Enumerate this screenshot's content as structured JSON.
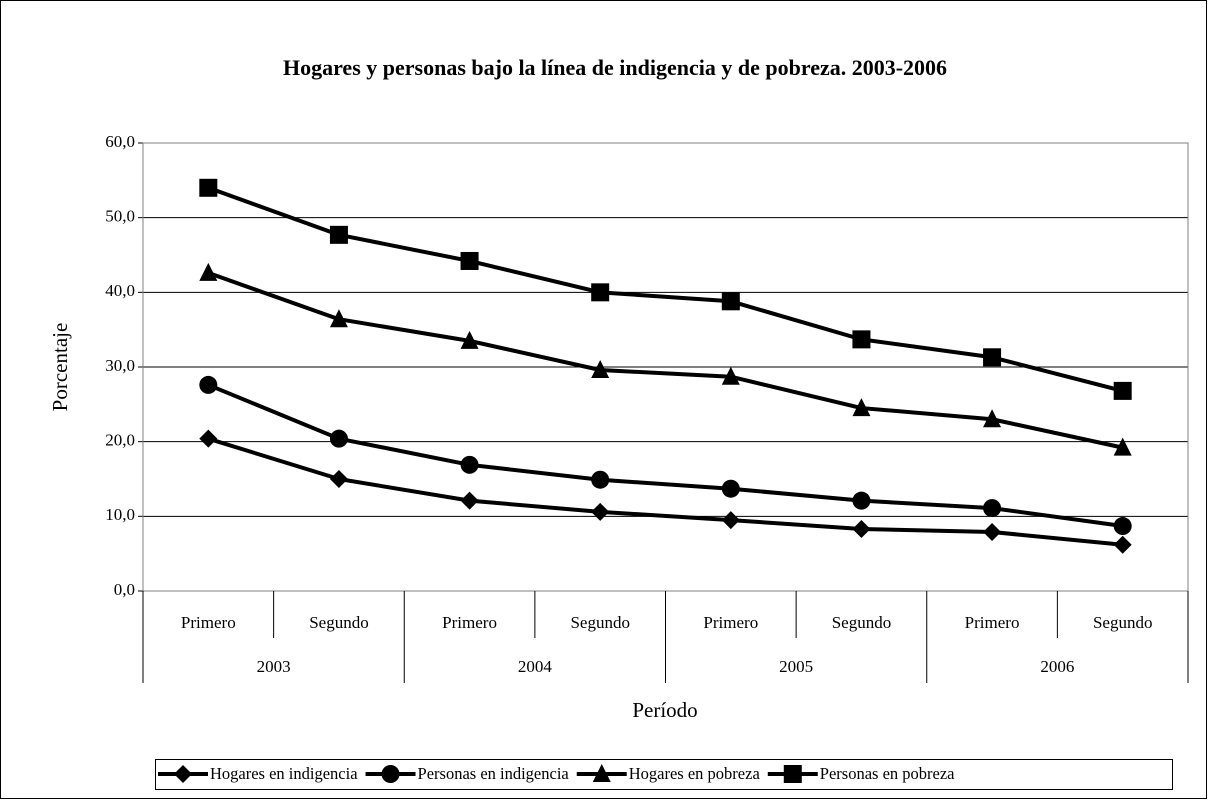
{
  "chart_data": {
    "type": "line",
    "title": "Hogares y personas bajo la línea de indigencia y de pobreza. 2003-2006",
    "y_label": "Porcentaje",
    "x_label": "Período",
    "categories": [
      "Primero",
      "Segundo",
      "Primero",
      "Segundo",
      "Primero",
      "Segundo",
      "Primero",
      "Segundo"
    ],
    "category_groups": [
      "2003",
      "2004",
      "2005",
      "2006"
    ],
    "series": [
      {
        "name": "Hogares en indigencia",
        "color": "#000000",
        "marker": "diamond",
        "values": [
          20.4,
          15.0,
          12.1,
          10.6,
          9.5,
          8.3,
          7.9,
          6.2
        ]
      },
      {
        "name": "Personas en indigencia",
        "color": "#000000",
        "marker": "circle",
        "values": [
          27.6,
          20.4,
          16.9,
          14.9,
          13.7,
          12.1,
          11.1,
          8.7
        ]
      },
      {
        "name": "Hogares en pobreza",
        "color": "#000000",
        "marker": "triangle",
        "values": [
          42.6,
          36.4,
          33.5,
          29.6,
          28.7,
          24.5,
          23.0,
          19.2
        ]
      },
      {
        "name": "Personas en pobreza",
        "color": "#000000",
        "marker": "square",
        "values": [
          54.0,
          47.7,
          44.2,
          40.0,
          38.8,
          33.7,
          31.3,
          26.8
        ]
      }
    ],
    "ylim": [
      0,
      60
    ],
    "yticks": [
      {
        "value": 0,
        "label": "0,0"
      },
      {
        "value": 10,
        "label": "10,0"
      },
      {
        "value": 20,
        "label": "20,0"
      },
      {
        "value": 30,
        "label": "30,0"
      },
      {
        "value": 40,
        "label": "40,0"
      },
      {
        "value": 50,
        "label": "50,0"
      },
      {
        "value": 60,
        "label": "60,0"
      }
    ],
    "grid": true,
    "legend": "bottom"
  }
}
